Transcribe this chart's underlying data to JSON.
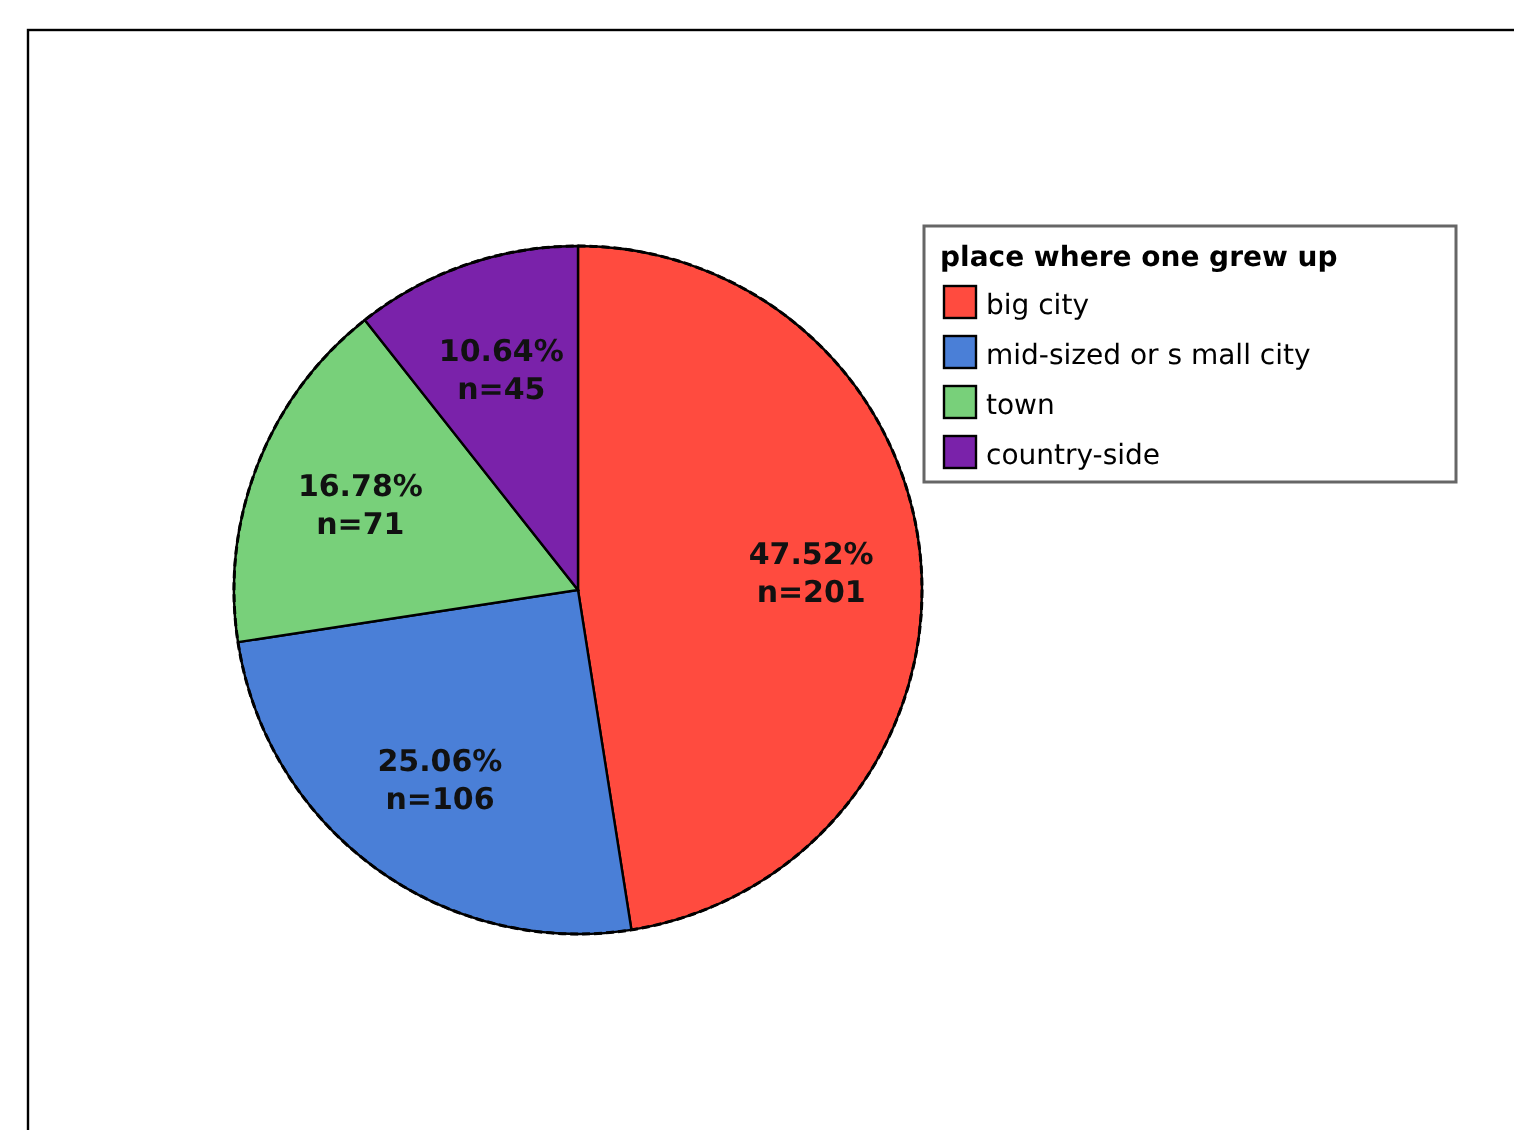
{
  "chart_data": {
    "type": "pie",
    "legend_title": "place where one grew up",
    "categories": [
      "big city",
      "mid-sized or s mall city",
      "town",
      "country-side"
    ],
    "values": [
      201,
      106,
      71,
      45
    ],
    "colors": [
      "#ff4b3f",
      "#4a7fd7",
      "#78d07a",
      "#7a22aa"
    ],
    "value_labels": [
      "47.52%\nn=201",
      "25.06%\nn=106",
      "16.78%\nn=71",
      "10.64%\nn=45"
    ],
    "legend": "top right"
  }
}
